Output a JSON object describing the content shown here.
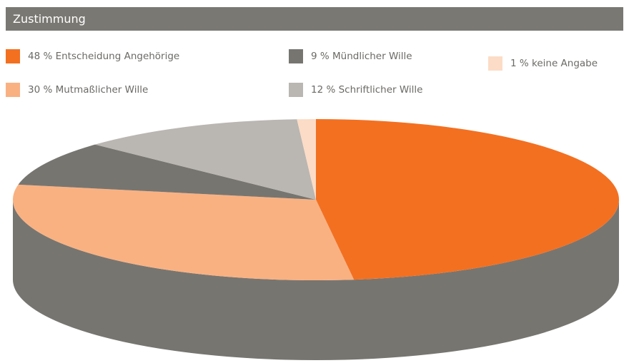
{
  "header": {
    "title": "Zustimmung",
    "bg_color": "#7a7872"
  },
  "chart_data": {
    "type": "pie",
    "style": "3d",
    "title": "Zustimmung",
    "unit": "%",
    "legend_position": "top",
    "side_color": "#777570",
    "slices": [
      {
        "label": "48 % Entscheidung Angehörige",
        "value": 48,
        "color": "#f37021"
      },
      {
        "label": "30 % Mutmaßlicher Wille",
        "value": 30,
        "color": "#f9b182"
      },
      {
        "label": "9 % Mündlicher Wille",
        "value": 9,
        "color": "#777570"
      },
      {
        "label": "12 % Schriftlicher Wille",
        "value": 12,
        "color": "#bab6b2"
      },
      {
        "label": "1 % keine Angabe",
        "value": 1,
        "color": "#fcdcc6"
      }
    ]
  }
}
